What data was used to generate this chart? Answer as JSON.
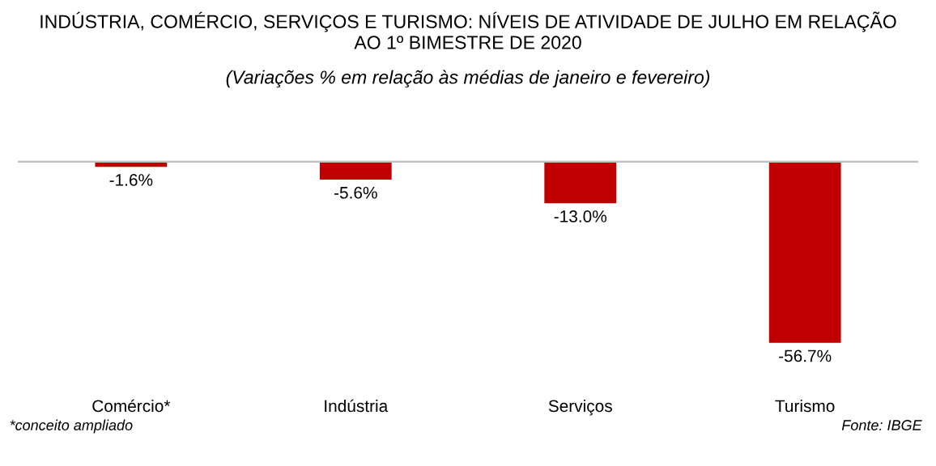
{
  "chart_data": {
    "type": "bar",
    "title": "INDÚSTRIA, COMÉRCIO, SERVIÇOS E TURISMO: NÍVEIS DE ATIVIDADE DE JULHO EM RELAÇÃO\nAO 1º BIMESTRE DE 2020",
    "subtitle": "(Variações % em relação às médias de janeiro e fevereiro)",
    "categories": [
      "Comércio*",
      "Indústria",
      "Serviços",
      "Turismo"
    ],
    "values": [
      -1.6,
      -5.6,
      -13.0,
      -56.7
    ],
    "value_labels": [
      "-1.6%",
      "-5.6%",
      "-13.0%",
      "-56.7%"
    ],
    "color": "#c00000",
    "grid": false,
    "legend": false,
    "annotations": [
      "*conceito ampliado",
      "Fonte: IBGE"
    ]
  }
}
